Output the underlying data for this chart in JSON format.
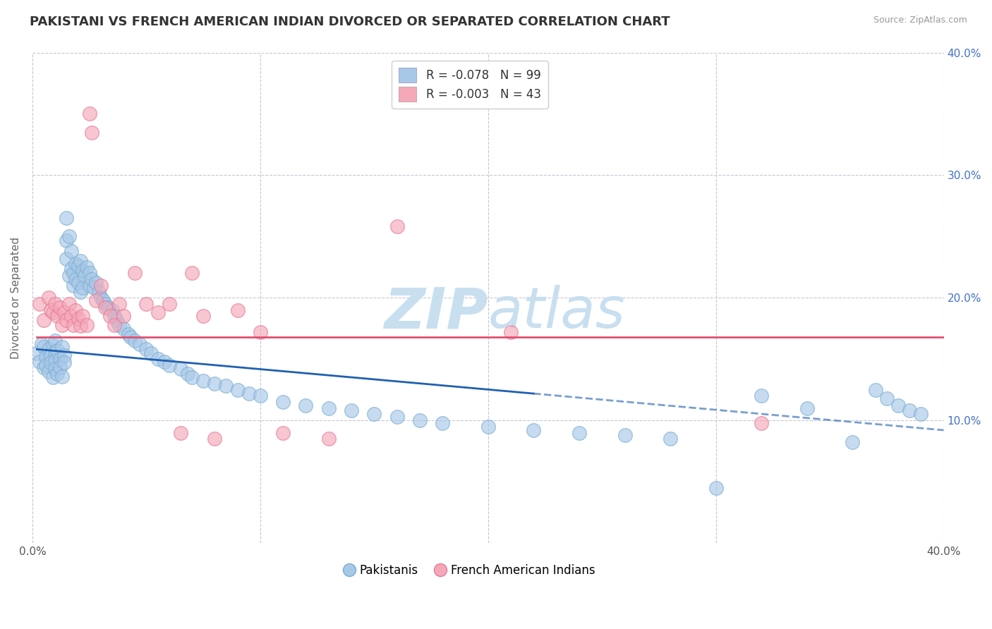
{
  "title": "PAKISTANI VS FRENCH AMERICAN INDIAN DIVORCED OR SEPARATED CORRELATION CHART",
  "source": "Source: ZipAtlas.com",
  "ylabel": "Divorced or Separated",
  "xlim": [
    0.0,
    0.4
  ],
  "ylim": [
    0.0,
    0.4
  ],
  "blue_R": -0.078,
  "blue_N": 99,
  "pink_R": -0.003,
  "pink_N": 43,
  "blue_color": "#a8c8e8",
  "pink_color": "#f4a8b8",
  "blue_edge_color": "#7aaed0",
  "pink_edge_color": "#e87898",
  "blue_line_color": "#2060b0",
  "pink_line_color": "#e05070",
  "watermark_color": "#c8dff0",
  "legend_label_blue": "Pakistanis",
  "legend_label_pink": "French American Indians",
  "blue_scatter_x": [
    0.002,
    0.003,
    0.004,
    0.005,
    0.005,
    0.006,
    0.006,
    0.007,
    0.007,
    0.008,
    0.008,
    0.009,
    0.009,
    0.01,
    0.01,
    0.01,
    0.01,
    0.011,
    0.011,
    0.012,
    0.012,
    0.013,
    0.013,
    0.014,
    0.014,
    0.015,
    0.015,
    0.015,
    0.016,
    0.016,
    0.017,
    0.017,
    0.018,
    0.018,
    0.019,
    0.019,
    0.02,
    0.02,
    0.021,
    0.021,
    0.022,
    0.022,
    0.023,
    0.024,
    0.025,
    0.025,
    0.026,
    0.027,
    0.028,
    0.029,
    0.03,
    0.031,
    0.032,
    0.033,
    0.035,
    0.036,
    0.037,
    0.038,
    0.04,
    0.042,
    0.043,
    0.045,
    0.047,
    0.05,
    0.052,
    0.055,
    0.058,
    0.06,
    0.065,
    0.068,
    0.07,
    0.075,
    0.08,
    0.085,
    0.09,
    0.095,
    0.1,
    0.11,
    0.12,
    0.13,
    0.14,
    0.15,
    0.16,
    0.17,
    0.18,
    0.2,
    0.22,
    0.24,
    0.26,
    0.28,
    0.3,
    0.32,
    0.34,
    0.36,
    0.37,
    0.375,
    0.38,
    0.385,
    0.39
  ],
  "blue_scatter_y": [
    0.155,
    0.148,
    0.162,
    0.143,
    0.16,
    0.152,
    0.145,
    0.158,
    0.14,
    0.153,
    0.147,
    0.161,
    0.135,
    0.156,
    0.149,
    0.142,
    0.165,
    0.138,
    0.157,
    0.15,
    0.143,
    0.16,
    0.136,
    0.153,
    0.147,
    0.265,
    0.247,
    0.232,
    0.218,
    0.25,
    0.224,
    0.238,
    0.22,
    0.21,
    0.228,
    0.215,
    0.226,
    0.212,
    0.23,
    0.205,
    0.222,
    0.208,
    0.218,
    0.225,
    0.22,
    0.21,
    0.215,
    0.208,
    0.212,
    0.205,
    0.2,
    0.198,
    0.195,
    0.192,
    0.19,
    0.185,
    0.182,
    0.178,
    0.175,
    0.17,
    0.168,
    0.165,
    0.162,
    0.158,
    0.155,
    0.15,
    0.148,
    0.145,
    0.142,
    0.138,
    0.135,
    0.132,
    0.13,
    0.128,
    0.125,
    0.122,
    0.12,
    0.115,
    0.112,
    0.11,
    0.108,
    0.105,
    0.103,
    0.1,
    0.098,
    0.095,
    0.092,
    0.09,
    0.088,
    0.085,
    0.045,
    0.12,
    0.11,
    0.082,
    0.125,
    0.118,
    0.112,
    0.108,
    0.105
  ],
  "pink_scatter_x": [
    0.003,
    0.005,
    0.007,
    0.008,
    0.009,
    0.01,
    0.011,
    0.012,
    0.013,
    0.014,
    0.015,
    0.016,
    0.017,
    0.018,
    0.019,
    0.02,
    0.021,
    0.022,
    0.024,
    0.025,
    0.026,
    0.028,
    0.03,
    0.032,
    0.034,
    0.036,
    0.038,
    0.04,
    0.045,
    0.05,
    0.055,
    0.06,
    0.065,
    0.07,
    0.075,
    0.08,
    0.09,
    0.1,
    0.11,
    0.13,
    0.16,
    0.21,
    0.32
  ],
  "pink_scatter_y": [
    0.195,
    0.182,
    0.2,
    0.19,
    0.188,
    0.195,
    0.185,
    0.192,
    0.178,
    0.188,
    0.182,
    0.195,
    0.185,
    0.178,
    0.19,
    0.183,
    0.177,
    0.185,
    0.178,
    0.35,
    0.335,
    0.198,
    0.21,
    0.192,
    0.185,
    0.178,
    0.195,
    0.185,
    0.22,
    0.195,
    0.188,
    0.195,
    0.09,
    0.22,
    0.185,
    0.085,
    0.19,
    0.172,
    0.09,
    0.085,
    0.258,
    0.172,
    0.098
  ],
  "blue_line_start_x": 0.002,
  "blue_line_end_solid_x": 0.22,
  "blue_line_end_x": 0.4,
  "blue_line_start_y": 0.158,
  "blue_line_end_y": 0.092,
  "pink_line_start_x": 0.002,
  "pink_line_end_x": 0.4,
  "pink_line_y": 0.168
}
